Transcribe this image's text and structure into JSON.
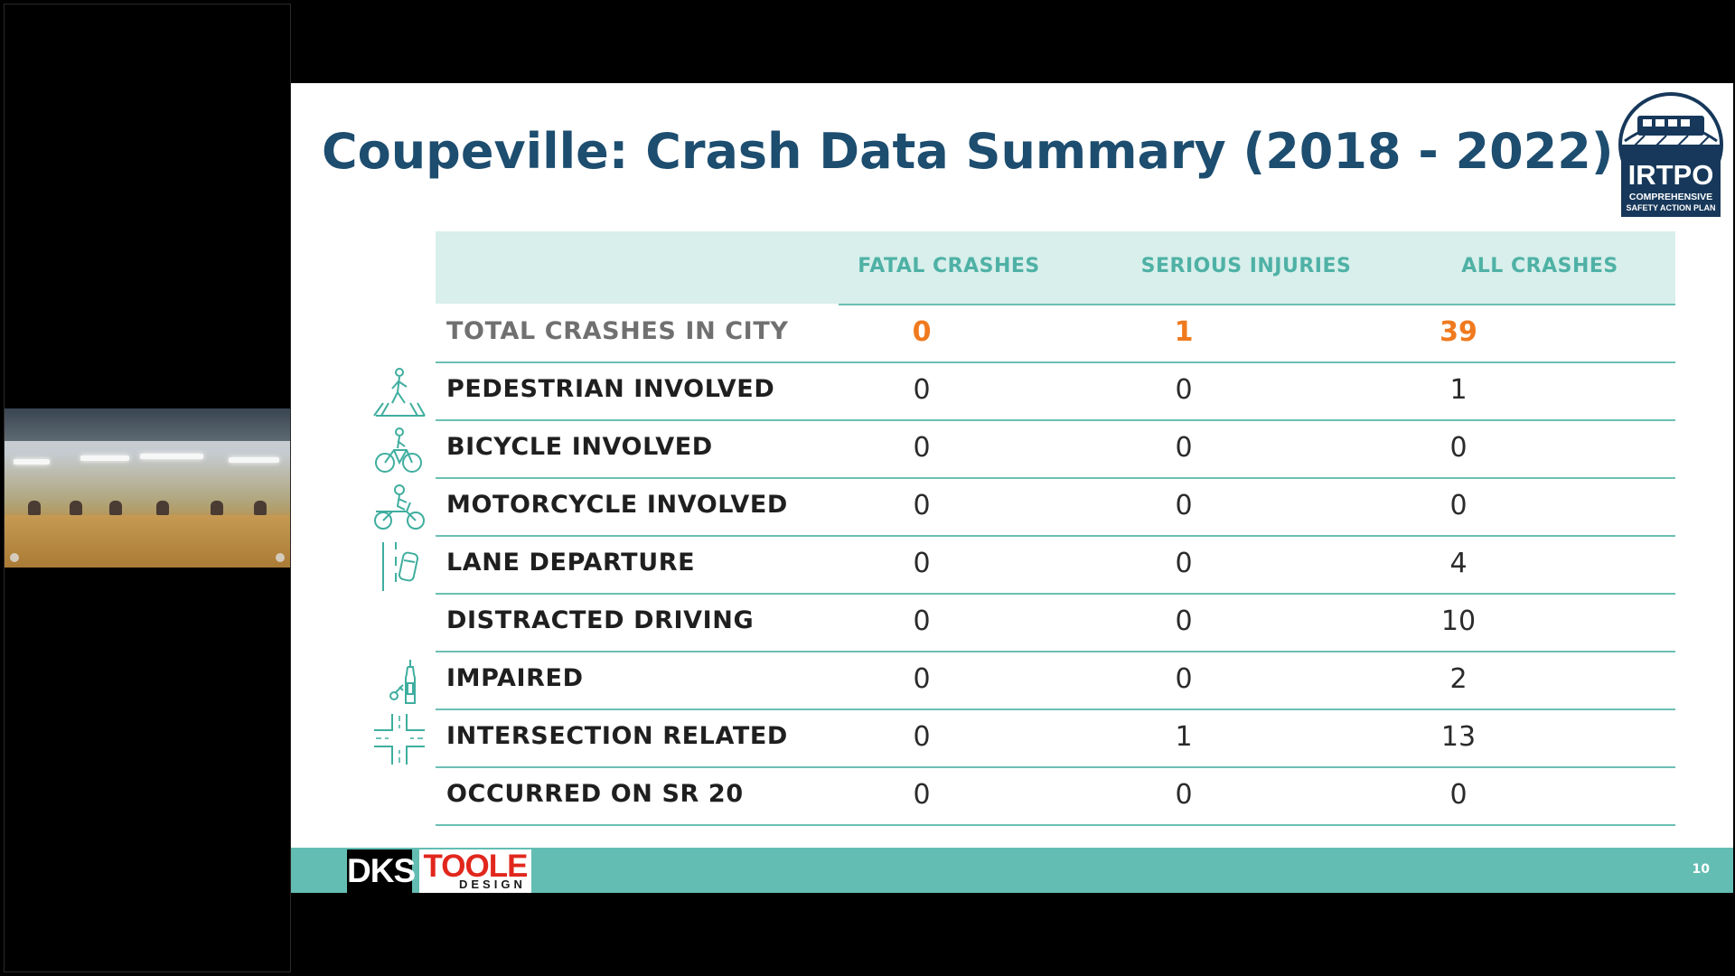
{
  "slide": {
    "title": "Coupeville: Crash Data Summary (2018 - 2022)",
    "page_number": "10",
    "brand_color": "#1d4d6f",
    "accent_color": "#64bdb3",
    "highlight_color": "#f07a1e"
  },
  "logo": {
    "name": "IRTPO",
    "line1": "COMPREHENSIVE",
    "line2": "SAFETY ACTION PLAN"
  },
  "footer": {
    "dks": "DKS",
    "toole": "TOOLE",
    "toole_sub": "DESIGN"
  },
  "table": {
    "headers": [
      "FATAL CRASHES",
      "SERIOUS INJURIES",
      "ALL CRASHES"
    ],
    "rows": [
      {
        "label": "TOTAL CRASHES IN CITY",
        "icon": "none",
        "fatal": "0",
        "serious": "1",
        "all": "39"
      },
      {
        "label": "PEDESTRIAN INVOLVED",
        "icon": "pedestrian-icon",
        "fatal": "0",
        "serious": "0",
        "all": "1"
      },
      {
        "label": "BICYCLE INVOLVED",
        "icon": "bicycle-icon",
        "fatal": "0",
        "serious": "0",
        "all": "0"
      },
      {
        "label": "MOTORCYCLE INVOLVED",
        "icon": "motorcycle-icon",
        "fatal": "0",
        "serious": "0",
        "all": "0"
      },
      {
        "label": "LANE DEPARTURE",
        "icon": "lane-departure-icon",
        "fatal": "0",
        "serious": "0",
        "all": "4"
      },
      {
        "label": "DISTRACTED DRIVING",
        "icon": "none",
        "fatal": "0",
        "serious": "0",
        "all": "10"
      },
      {
        "label": "IMPAIRED",
        "icon": "impaired-icon",
        "fatal": "0",
        "serious": "0",
        "all": "2"
      },
      {
        "label": "INTERSECTION RELATED",
        "icon": "intersection-icon",
        "fatal": "0",
        "serious": "1",
        "all": "13"
      },
      {
        "label": "OCCURRED ON SR 20",
        "icon": "none",
        "fatal": "0",
        "serious": "0",
        "all": "0"
      }
    ]
  }
}
